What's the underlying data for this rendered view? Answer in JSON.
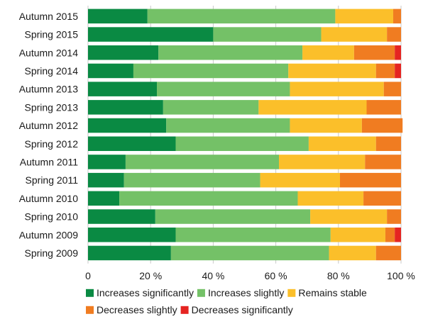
{
  "chart_data": {
    "type": "bar",
    "orientation": "horizontal",
    "stacked": true,
    "categories": [
      "Autumn 2015",
      "Spring 2015",
      "Autumn 2014",
      "Spring 2014",
      "Autumn 2013",
      "Spring 2013",
      "Autumn 2012",
      "Spring 2012",
      "Autumn 2011",
      "Spring 2011",
      "Autumn 2010",
      "Spring 2010",
      "Autumn 2009",
      "Spring 2009"
    ],
    "series": [
      {
        "name": "Increases significantly",
        "color": "#0a8a43",
        "values": [
          19,
          40,
          22.5,
          14.5,
          22,
          24,
          25,
          28,
          12,
          11.5,
          10,
          21.5,
          28,
          26.5
        ]
      },
      {
        "name": "Increases slightly",
        "color": "#74c167",
        "values": [
          60,
          34.5,
          46,
          49.5,
          42.5,
          30.5,
          39.5,
          42.5,
          49,
          43.5,
          57,
          49.5,
          49.5,
          50.5
        ]
      },
      {
        "name": "Remains stable",
        "color": "#fbbf2a",
        "values": [
          18.5,
          21,
          16.5,
          28,
          30,
          34.5,
          23,
          21.5,
          27.5,
          25.5,
          21,
          24.5,
          17.5,
          15
        ]
      },
      {
        "name": "Decreases slightly",
        "color": "#f07c21",
        "values": [
          2.5,
          4.5,
          13,
          6,
          5.5,
          11,
          13,
          8,
          11.5,
          19.5,
          12,
          4.5,
          3,
          8
        ]
      },
      {
        "name": "Decreases significantly",
        "color": "#e52421",
        "values": [
          0,
          0,
          2,
          2,
          0,
          0,
          0,
          0,
          0,
          0,
          0,
          0,
          2,
          0
        ]
      }
    ],
    "xlim": [
      0,
      100
    ],
    "xticks": [
      "0",
      "20 %",
      "40 %",
      "60 %",
      "80 %",
      "100 %"
    ],
    "grid": true,
    "legend_position": "bottom"
  }
}
